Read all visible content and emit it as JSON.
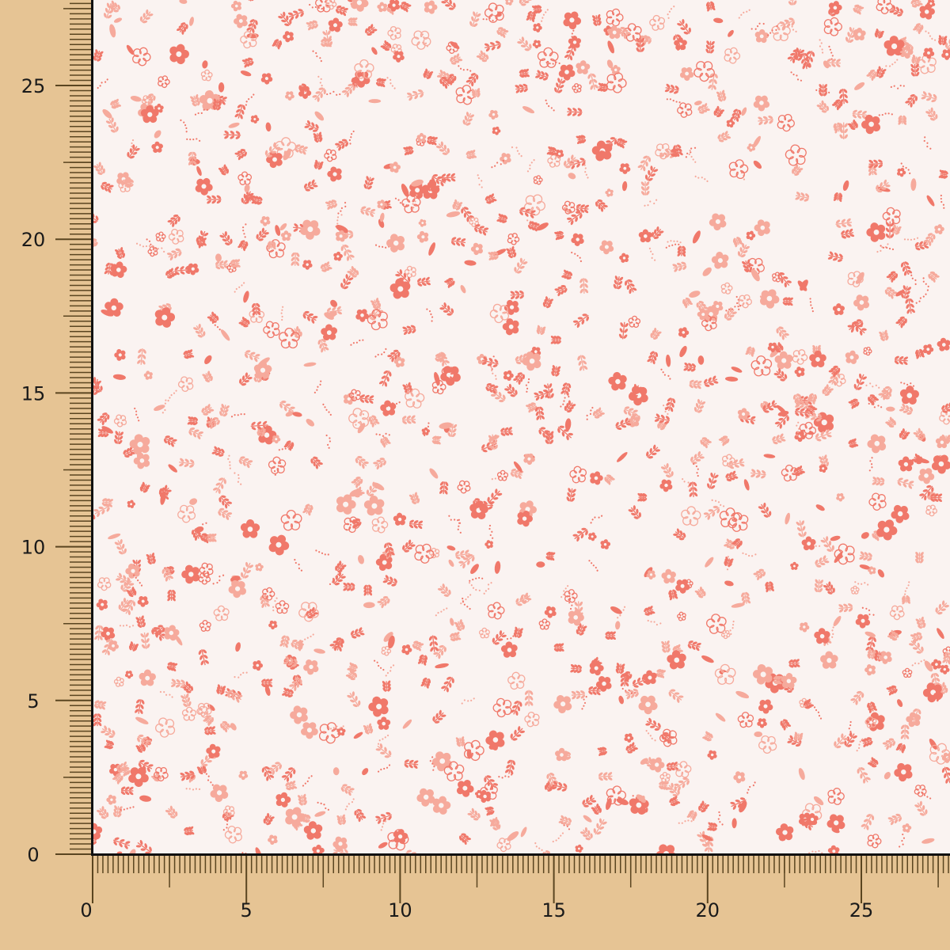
{
  "ruler_x": {
    "labels": [
      "0",
      "5",
      "10",
      "15",
      "20",
      "25"
    ],
    "values": [
      0,
      5,
      10,
      15,
      20,
      25
    ]
  },
  "ruler_y": {
    "labels": [
      "0",
      "5",
      "10",
      "15",
      "20",
      "25"
    ],
    "values": [
      0,
      5,
      10,
      15,
      20,
      25
    ]
  },
  "colors": {
    "background": "#e6c494",
    "fabric_ground": "#faf3f1",
    "print_dark": "#f0786a",
    "print_light": "#f6aa9c",
    "tick": "#5a4520"
  }
}
